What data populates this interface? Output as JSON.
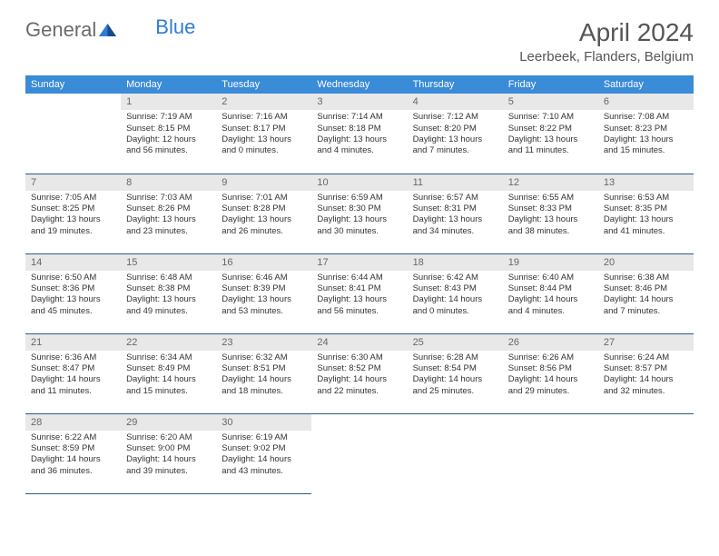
{
  "logo": {
    "general": "General",
    "blue": "Blue"
  },
  "title": "April 2024",
  "location": "Leerbeek, Flanders, Belgium",
  "colors": {
    "header_bg": "#3a8bd8",
    "header_text": "#ffffff",
    "daynum_bg": "#e8e8e8",
    "daynum_text": "#666666",
    "border": "#2b5a8a",
    "body_text": "#333333",
    "title_text": "#555555",
    "logo_gray": "#6a6a6a",
    "logo_blue": "#2e7cd6"
  },
  "fonts": {
    "title_size": 28,
    "location_size": 15,
    "weekday_size": 11,
    "daynum_size": 11,
    "body_size": 9.5
  },
  "weekdays": [
    "Sunday",
    "Monday",
    "Tuesday",
    "Wednesday",
    "Thursday",
    "Friday",
    "Saturday"
  ],
  "weeks": [
    [
      null,
      {
        "n": "1",
        "sr": "Sunrise: 7:19 AM",
        "ss": "Sunset: 8:15 PM",
        "dl": "Daylight: 12 hours and 56 minutes."
      },
      {
        "n": "2",
        "sr": "Sunrise: 7:16 AM",
        "ss": "Sunset: 8:17 PM",
        "dl": "Daylight: 13 hours and 0 minutes."
      },
      {
        "n": "3",
        "sr": "Sunrise: 7:14 AM",
        "ss": "Sunset: 8:18 PM",
        "dl": "Daylight: 13 hours and 4 minutes."
      },
      {
        "n": "4",
        "sr": "Sunrise: 7:12 AM",
        "ss": "Sunset: 8:20 PM",
        "dl": "Daylight: 13 hours and 7 minutes."
      },
      {
        "n": "5",
        "sr": "Sunrise: 7:10 AM",
        "ss": "Sunset: 8:22 PM",
        "dl": "Daylight: 13 hours and 11 minutes."
      },
      {
        "n": "6",
        "sr": "Sunrise: 7:08 AM",
        "ss": "Sunset: 8:23 PM",
        "dl": "Daylight: 13 hours and 15 minutes."
      }
    ],
    [
      {
        "n": "7",
        "sr": "Sunrise: 7:05 AM",
        "ss": "Sunset: 8:25 PM",
        "dl": "Daylight: 13 hours and 19 minutes."
      },
      {
        "n": "8",
        "sr": "Sunrise: 7:03 AM",
        "ss": "Sunset: 8:26 PM",
        "dl": "Daylight: 13 hours and 23 minutes."
      },
      {
        "n": "9",
        "sr": "Sunrise: 7:01 AM",
        "ss": "Sunset: 8:28 PM",
        "dl": "Daylight: 13 hours and 26 minutes."
      },
      {
        "n": "10",
        "sr": "Sunrise: 6:59 AM",
        "ss": "Sunset: 8:30 PM",
        "dl": "Daylight: 13 hours and 30 minutes."
      },
      {
        "n": "11",
        "sr": "Sunrise: 6:57 AM",
        "ss": "Sunset: 8:31 PM",
        "dl": "Daylight: 13 hours and 34 minutes."
      },
      {
        "n": "12",
        "sr": "Sunrise: 6:55 AM",
        "ss": "Sunset: 8:33 PM",
        "dl": "Daylight: 13 hours and 38 minutes."
      },
      {
        "n": "13",
        "sr": "Sunrise: 6:53 AM",
        "ss": "Sunset: 8:35 PM",
        "dl": "Daylight: 13 hours and 41 minutes."
      }
    ],
    [
      {
        "n": "14",
        "sr": "Sunrise: 6:50 AM",
        "ss": "Sunset: 8:36 PM",
        "dl": "Daylight: 13 hours and 45 minutes."
      },
      {
        "n": "15",
        "sr": "Sunrise: 6:48 AM",
        "ss": "Sunset: 8:38 PM",
        "dl": "Daylight: 13 hours and 49 minutes."
      },
      {
        "n": "16",
        "sr": "Sunrise: 6:46 AM",
        "ss": "Sunset: 8:39 PM",
        "dl": "Daylight: 13 hours and 53 minutes."
      },
      {
        "n": "17",
        "sr": "Sunrise: 6:44 AM",
        "ss": "Sunset: 8:41 PM",
        "dl": "Daylight: 13 hours and 56 minutes."
      },
      {
        "n": "18",
        "sr": "Sunrise: 6:42 AM",
        "ss": "Sunset: 8:43 PM",
        "dl": "Daylight: 14 hours and 0 minutes."
      },
      {
        "n": "19",
        "sr": "Sunrise: 6:40 AM",
        "ss": "Sunset: 8:44 PM",
        "dl": "Daylight: 14 hours and 4 minutes."
      },
      {
        "n": "20",
        "sr": "Sunrise: 6:38 AM",
        "ss": "Sunset: 8:46 PM",
        "dl": "Daylight: 14 hours and 7 minutes."
      }
    ],
    [
      {
        "n": "21",
        "sr": "Sunrise: 6:36 AM",
        "ss": "Sunset: 8:47 PM",
        "dl": "Daylight: 14 hours and 11 minutes."
      },
      {
        "n": "22",
        "sr": "Sunrise: 6:34 AM",
        "ss": "Sunset: 8:49 PM",
        "dl": "Daylight: 14 hours and 15 minutes."
      },
      {
        "n": "23",
        "sr": "Sunrise: 6:32 AM",
        "ss": "Sunset: 8:51 PM",
        "dl": "Daylight: 14 hours and 18 minutes."
      },
      {
        "n": "24",
        "sr": "Sunrise: 6:30 AM",
        "ss": "Sunset: 8:52 PM",
        "dl": "Daylight: 14 hours and 22 minutes."
      },
      {
        "n": "25",
        "sr": "Sunrise: 6:28 AM",
        "ss": "Sunset: 8:54 PM",
        "dl": "Daylight: 14 hours and 25 minutes."
      },
      {
        "n": "26",
        "sr": "Sunrise: 6:26 AM",
        "ss": "Sunset: 8:56 PM",
        "dl": "Daylight: 14 hours and 29 minutes."
      },
      {
        "n": "27",
        "sr": "Sunrise: 6:24 AM",
        "ss": "Sunset: 8:57 PM",
        "dl": "Daylight: 14 hours and 32 minutes."
      }
    ],
    [
      {
        "n": "28",
        "sr": "Sunrise: 6:22 AM",
        "ss": "Sunset: 8:59 PM",
        "dl": "Daylight: 14 hours and 36 minutes."
      },
      {
        "n": "29",
        "sr": "Sunrise: 6:20 AM",
        "ss": "Sunset: 9:00 PM",
        "dl": "Daylight: 14 hours and 39 minutes."
      },
      {
        "n": "30",
        "sr": "Sunrise: 6:19 AM",
        "ss": "Sunset: 9:02 PM",
        "dl": "Daylight: 14 hours and 43 minutes."
      },
      null,
      null,
      null,
      null
    ]
  ]
}
